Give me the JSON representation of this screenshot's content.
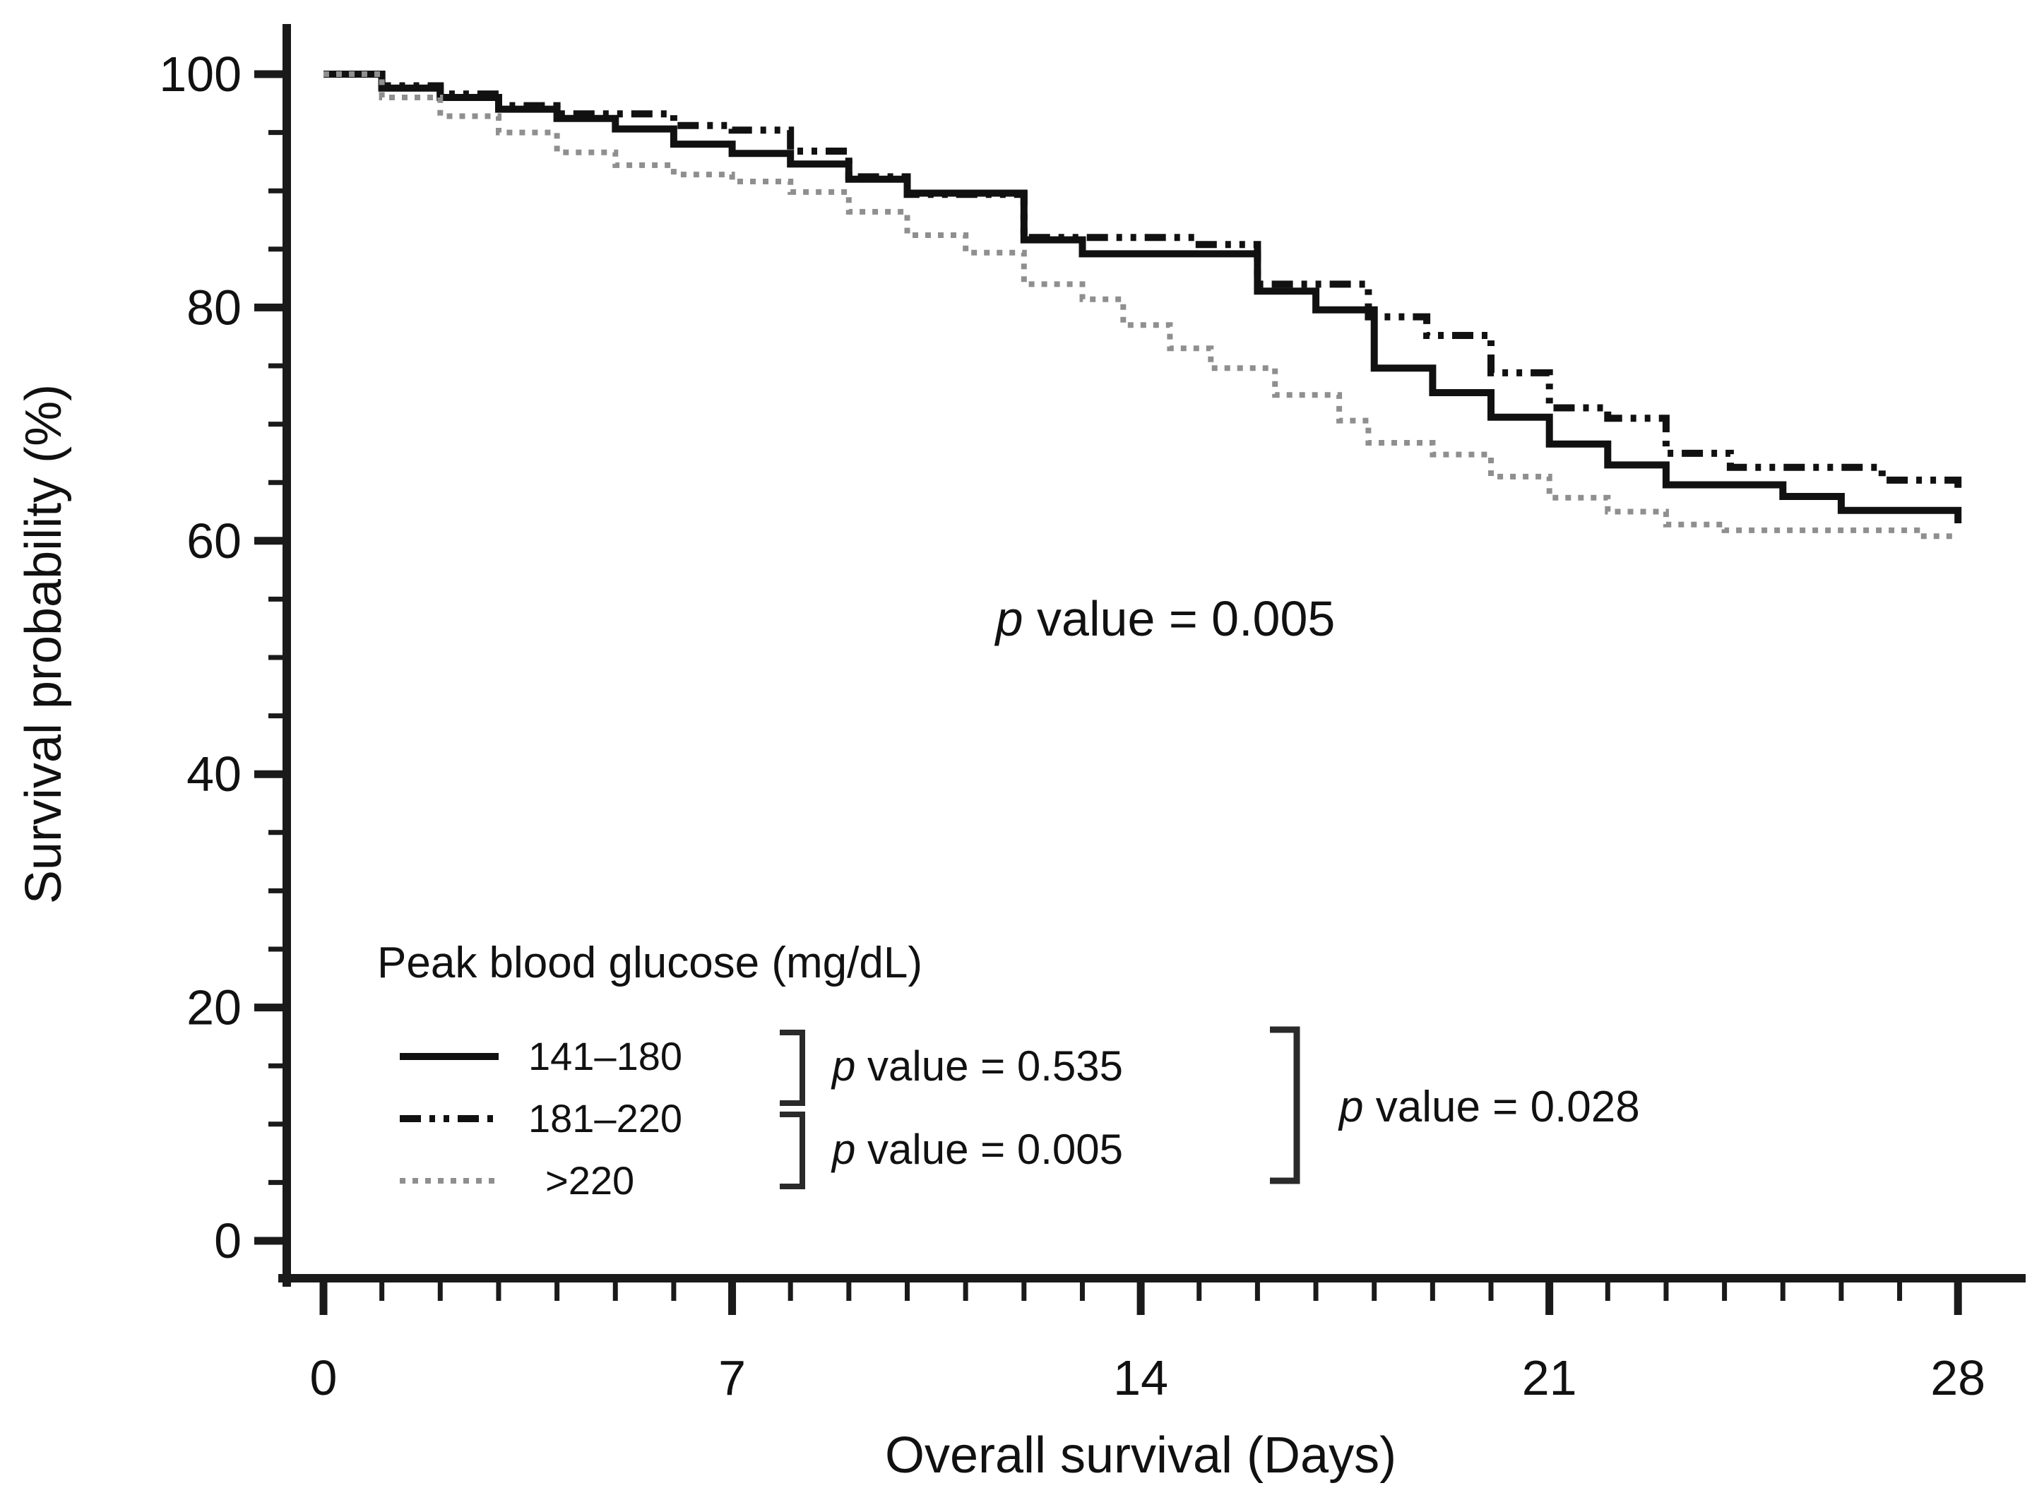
{
  "figure": {
    "background": "#ffffff",
    "text_color": "#111111",
    "gray_curve_color": "#8f8f8f"
  },
  "chart_data": {
    "type": "line",
    "subtype": "kaplan-meier-step-survival",
    "title": "",
    "xlabel": "Overall survival (Days)",
    "ylabel": "Survival probability (%)",
    "xlim": [
      0,
      28
    ],
    "ylim": [
      0,
      100
    ],
    "x_ticks": [
      0,
      7,
      14,
      21,
      28
    ],
    "y_ticks": [
      0,
      20,
      40,
      60,
      80,
      100
    ],
    "x_minor_tick_step": 1,
    "y_minor_tick_step": 5,
    "grid": false,
    "legend_position": "inside-lower-left",
    "series": [
      {
        "name": "141–180",
        "style": "solid",
        "color": "#111111",
        "points": [
          [
            0,
            100
          ],
          [
            1,
            98.8
          ],
          [
            2,
            98
          ],
          [
            3,
            97
          ],
          [
            4,
            96.2
          ],
          [
            5,
            95.3
          ],
          [
            6,
            94
          ],
          [
            7,
            93.2
          ],
          [
            8,
            92.3
          ],
          [
            9,
            91
          ],
          [
            10,
            89.8
          ],
          [
            12,
            85.8
          ],
          [
            13,
            84.6
          ],
          [
            16,
            81.4
          ],
          [
            17,
            79.8
          ],
          [
            18,
            74.8
          ],
          [
            19,
            72.7
          ],
          [
            20,
            70.6
          ],
          [
            21,
            68.3
          ],
          [
            22,
            66.5
          ],
          [
            23,
            64.8
          ],
          [
            25,
            63.8
          ],
          [
            26,
            62.6
          ],
          [
            28,
            62.6
          ],
          [
            28,
            61.5
          ]
        ]
      },
      {
        "name": "181–220",
        "style": "dash-dot",
        "color": "#111111",
        "points": [
          [
            0,
            100
          ],
          [
            1,
            99
          ],
          [
            2,
            98.3
          ],
          [
            3,
            97.3
          ],
          [
            4,
            96.6
          ],
          [
            6,
            95.6
          ],
          [
            7,
            95.2
          ],
          [
            8,
            93.4
          ],
          [
            9,
            91.2
          ],
          [
            10,
            89.7
          ],
          [
            12,
            86
          ],
          [
            15,
            85.4
          ],
          [
            16,
            82
          ],
          [
            17.9,
            79.2
          ],
          [
            18.9,
            77.6
          ],
          [
            20,
            74.4
          ],
          [
            21,
            71.4
          ],
          [
            22,
            70.5
          ],
          [
            23,
            67.5
          ],
          [
            24.1,
            66.3
          ],
          [
            26.7,
            65.2
          ],
          [
            28,
            65.2
          ],
          [
            28,
            64.4
          ]
        ]
      },
      {
        "name": ">220",
        "style": "dotted",
        "color": "#8f8f8f",
        "points": [
          [
            0,
            100
          ],
          [
            1,
            98
          ],
          [
            2,
            96.4
          ],
          [
            3,
            95
          ],
          [
            4,
            93.3
          ],
          [
            5,
            92.2
          ],
          [
            6,
            91.4
          ],
          [
            7,
            90.8
          ],
          [
            8,
            89.9
          ],
          [
            9,
            88.2
          ],
          [
            10,
            86.2
          ],
          [
            11,
            84.7
          ],
          [
            12,
            82
          ],
          [
            13,
            80.7
          ],
          [
            13.7,
            78.5
          ],
          [
            14.5,
            76.5
          ],
          [
            15.2,
            74.8
          ],
          [
            16.3,
            72.5
          ],
          [
            17.4,
            70.3
          ],
          [
            17.9,
            68.4
          ],
          [
            19,
            67.4
          ],
          [
            20,
            65.5
          ],
          [
            21,
            63.7
          ],
          [
            22,
            62.5
          ],
          [
            23,
            61.4
          ],
          [
            24,
            60.9
          ],
          [
            27.3,
            60.4
          ],
          [
            28,
            60.4
          ]
        ]
      }
    ],
    "annotations": {
      "central": {
        "p": "p",
        "rest": " value = 0.005"
      },
      "pair_top": {
        "p": "p",
        "rest": " value = 0.535"
      },
      "pair_bottom": {
        "p": "p",
        "rest": " value = 0.005"
      },
      "overall": {
        "p": "p",
        "rest": " value = 0.028"
      }
    }
  },
  "legend": {
    "title": "Peak blood glucose (mg/dL)",
    "items": [
      {
        "label": "141–180",
        "style": "solid"
      },
      {
        "label": "181–220",
        "style": "dash-dot"
      },
      {
        "label": ">220",
        "style": "dotted"
      }
    ],
    "comparisons": [
      {
        "groups": [
          "141–180",
          "181–220"
        ],
        "p_text": "p value = 0.535"
      },
      {
        "groups": [
          "181–220",
          ">220"
        ],
        "p_text": "p value = 0.005"
      },
      {
        "groups": [
          "141–180",
          "181–220",
          ">220"
        ],
        "p_text": "p value = 0.028"
      }
    ]
  }
}
